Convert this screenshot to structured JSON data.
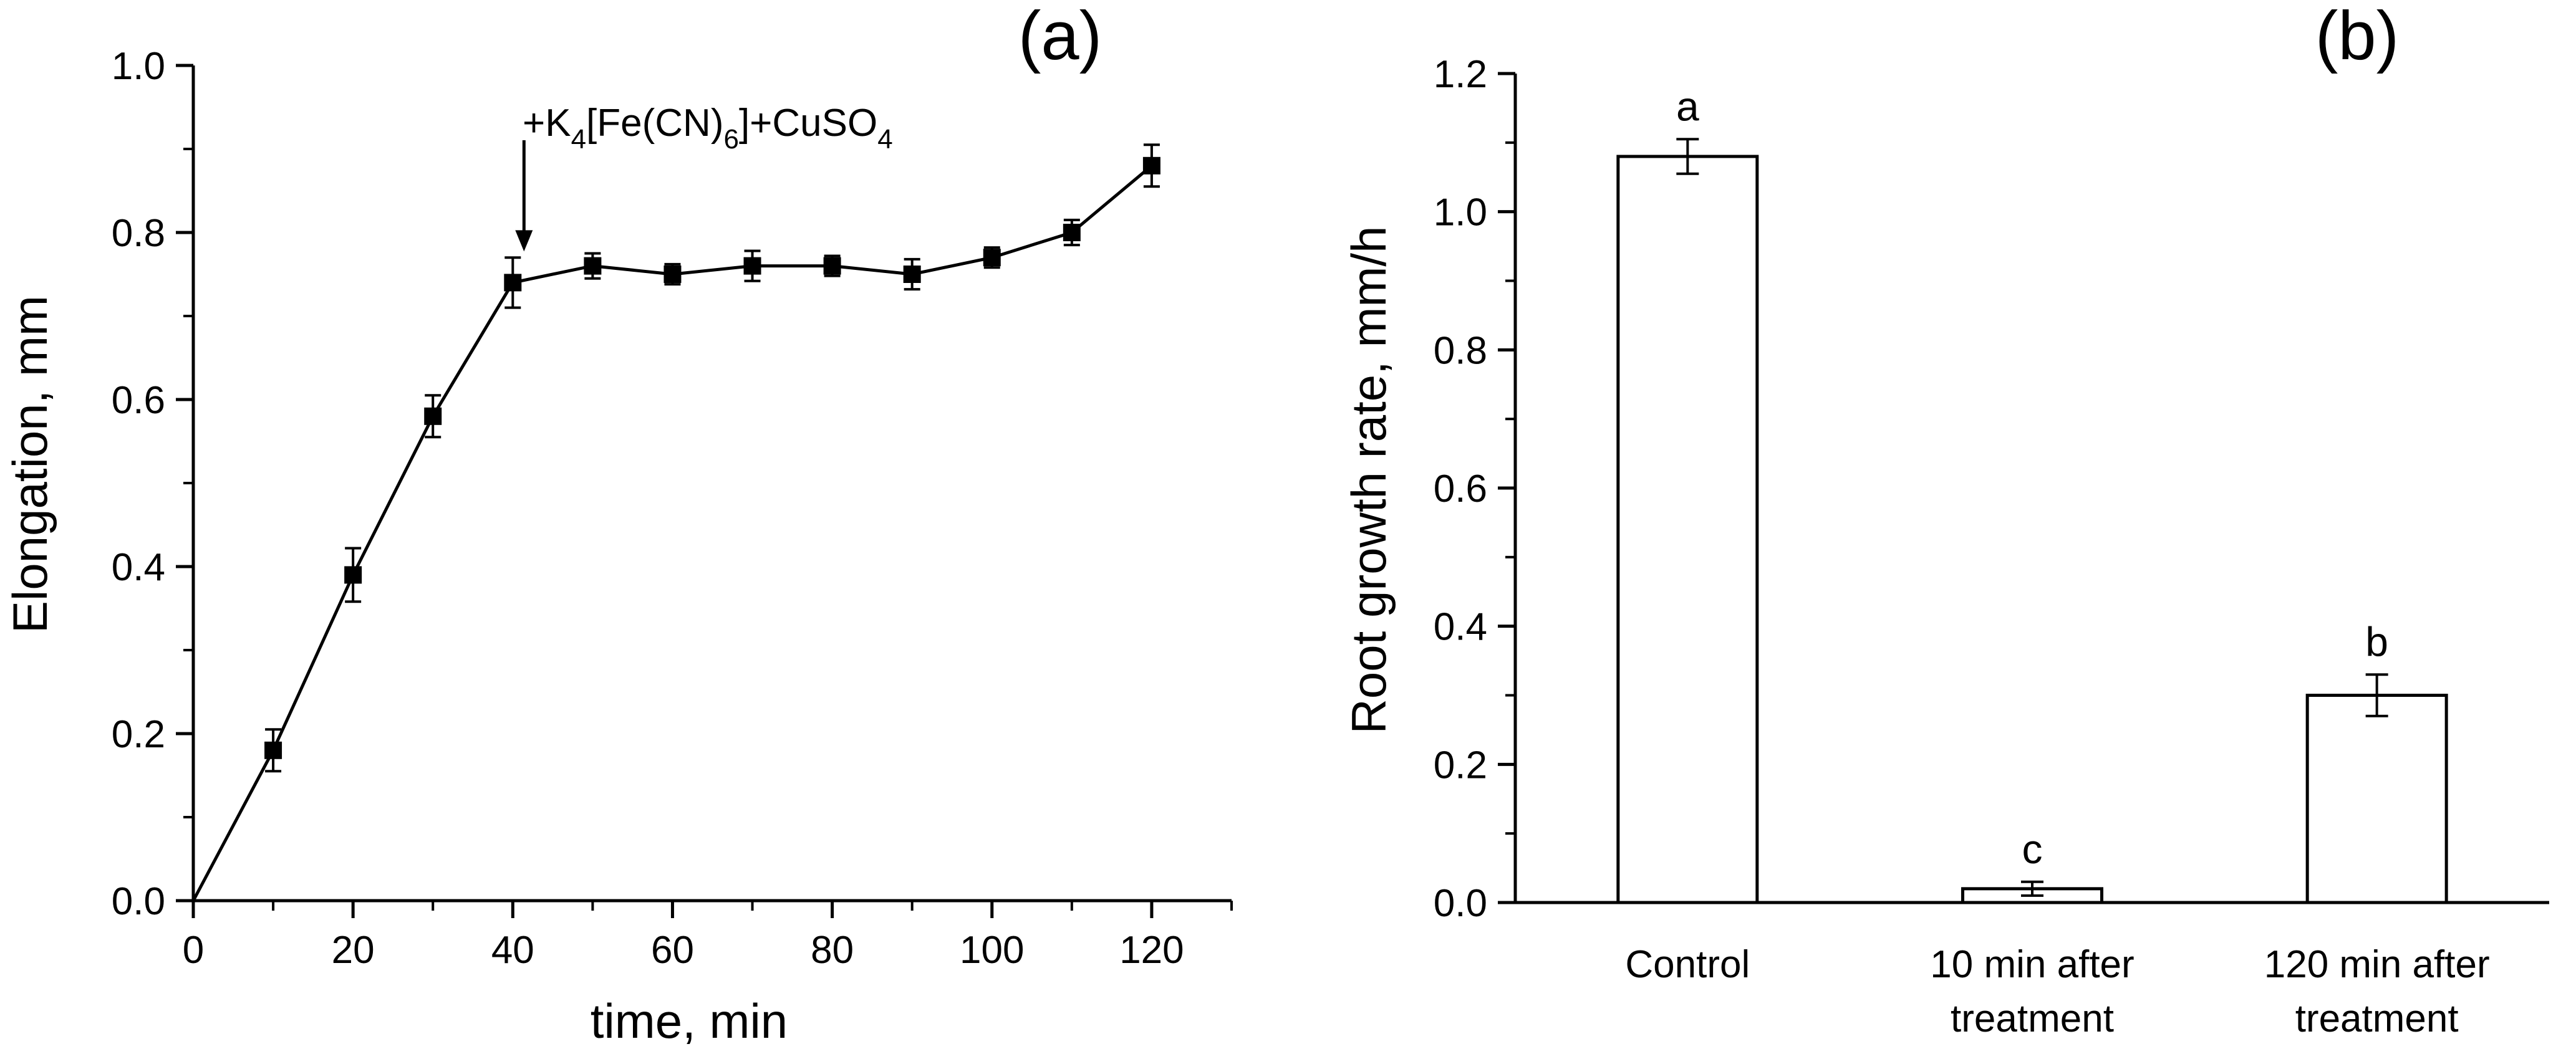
{
  "chart_data": [
    {
      "type": "line",
      "panel_label": "(a)",
      "xlabel": "time, min",
      "ylabel": "Elongation, mm",
      "xlim": [
        0,
        130
      ],
      "ylim": [
        0,
        1.0
      ],
      "xticks": [
        0,
        20,
        40,
        60,
        80,
        100,
        120
      ],
      "yticks": [
        0.0,
        0.2,
        0.4,
        0.6,
        0.8,
        1.0
      ],
      "xtick_labels": [
        "0",
        "20",
        "40",
        "60",
        "80",
        "100",
        "120"
      ],
      "ytick_labels": [
        "0.0",
        "0.2",
        "0.4",
        "0.6",
        "0.8",
        "1.0"
      ],
      "grid": false,
      "series": [
        {
          "x": [
            0,
            10,
            20,
            30,
            40,
            50,
            60,
            70,
            80,
            90,
            100,
            110,
            120
          ],
          "y": [
            0.0,
            0.18,
            0.39,
            0.58,
            0.74,
            0.76,
            0.75,
            0.76,
            0.76,
            0.75,
            0.77,
            0.8,
            0.88
          ],
          "err": [
            0,
            0.025,
            0.032,
            0.025,
            0.03,
            0.015,
            0.012,
            0.018,
            0.012,
            0.018,
            0.012,
            0.015,
            0.025
          ]
        }
      ],
      "annotation": {
        "x": 40,
        "text_prefix": "+K",
        "sub1": "4",
        "text_mid": "[Fe(CN)",
        "sub2": "6",
        "text_mid2": "]+CuSO",
        "sub3": "4"
      }
    },
    {
      "type": "bar",
      "panel_label": "(b)",
      "xlabel": "",
      "ylabel": "Root growth rate, mm/h",
      "ylim": [
        0,
        1.2
      ],
      "yticks": [
        0.0,
        0.2,
        0.4,
        0.6,
        0.8,
        1.0,
        1.2
      ],
      "ytick_labels": [
        "0.0",
        "0.2",
        "0.4",
        "0.6",
        "0.8",
        "1.0",
        "1.2"
      ],
      "grid": false,
      "categories": [
        [
          "Control"
        ],
        [
          "10 min after",
          "treatment"
        ],
        [
          "120 min after",
          "treatment"
        ]
      ],
      "values": [
        1.08,
        0.02,
        0.3
      ],
      "err": [
        0.025,
        0.01,
        0.03
      ],
      "significance_letters": [
        "a",
        "c",
        "b"
      ]
    }
  ]
}
